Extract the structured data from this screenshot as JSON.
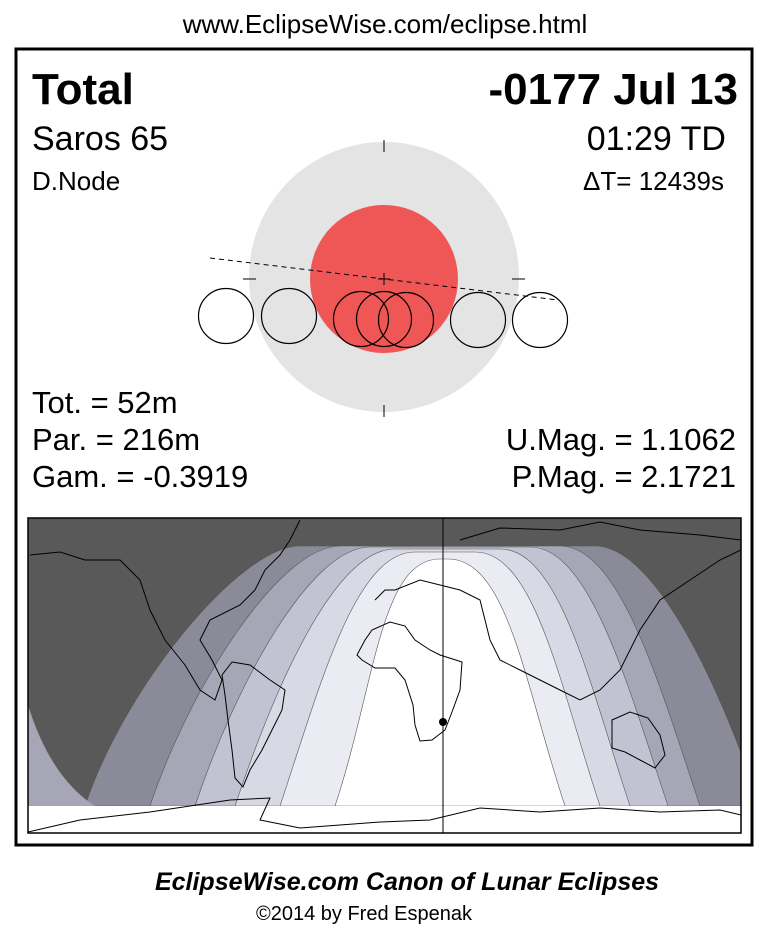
{
  "header_url": "www.EclipseWise.com/eclipse.html",
  "eclipse": {
    "type": "Total",
    "date": "-0177 Jul 13",
    "saros": "Saros  65",
    "time": "01:29 TD",
    "node": "D.Node",
    "delta_t": "ΔT=  12439s"
  },
  "stats": {
    "totality": "Tot. =  52m",
    "partial": "Par. = 216m",
    "gamma": "Gam. = -0.3919",
    "umbral_mag": "U.Mag. = 1.1062",
    "penumbral_mag": "P.Mag. = 2.1721"
  },
  "colors": {
    "penumbra": "#e4e4e4",
    "umbra": "#ef5656",
    "night": "#595959",
    "band1": "#8a8a99",
    "band2": "#a6a6b6",
    "band3": "#c2c2d2",
    "band4": "#d9d9e6",
    "band5": "#ebebf3"
  },
  "footer": {
    "title": "EclipseWise.com Canon of Lunar Eclipses",
    "copyright": "©2014 by Fred Espenak"
  }
}
